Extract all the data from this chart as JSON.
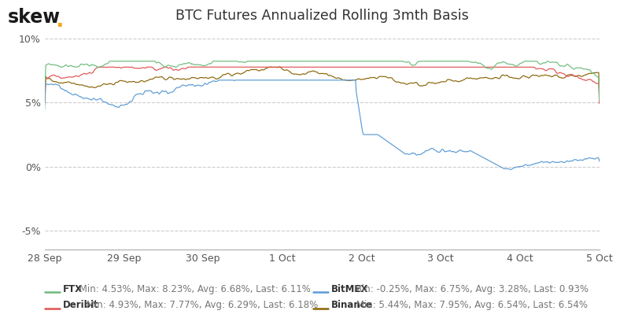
{
  "title": "BTC Futures Annualized Rolling 3mth Basis",
  "skew_dot_color": "#f5a623",
  "background_color": "#ffffff",
  "ylim": [
    -0.065,
    0.108
  ],
  "yticks": [
    -0.05,
    0.0,
    0.05,
    0.1
  ],
  "ytick_labels": [
    "-5%",
    "0%",
    "5%",
    "10%"
  ],
  "grid_color": "#cccccc",
  "grid_style": "--",
  "series": {
    "FTX": {
      "color": "#6dbb7a",
      "min": 0.0453,
      "max": 0.0823,
      "avg": 0.0668,
      "last": 0.0611
    },
    "BitMEX": {
      "color": "#5b9bd5",
      "min": -0.0025,
      "max": 0.0675,
      "avg": 0.0328,
      "last": 0.0093
    },
    "Deribit": {
      "color": "#e05252",
      "min": 0.0493,
      "max": 0.0777,
      "avg": 0.0629,
      "last": 0.0618
    },
    "Binance": {
      "color": "#8b6508",
      "min": 0.0544,
      "max": 0.0795,
      "avg": 0.0654,
      "last": 0.0654
    }
  },
  "legend": [
    {
      "name": "FTX",
      "stats": " Min: 4.53%, Max: 8.23%, Avg: 6.68%, Last: 6.11%"
    },
    {
      "name": "BitMEX",
      "stats": " Min: -0.25%, Max: 6.75%, Avg: 3.28%, Last: 0.93%"
    },
    {
      "name": "Deribit",
      "stats": " Min: 4.93%, Max: 7.77%, Avg: 6.29%, Last: 6.18%"
    },
    {
      "name": "Binance",
      "stats": " Min: 5.44%, Max: 7.95%, Avg: 6.54%, Last: 6.54%"
    }
  ],
  "xtick_labels": [
    "28 Sep",
    "29 Sep",
    "30 Sep",
    "1 Oct",
    "2 Oct",
    "3 Oct",
    "4 Oct",
    "5 Oct"
  ],
  "n_points": 900,
  "legend_fontsize": 8.5,
  "title_fontsize": 12.5,
  "text_color": "#555555"
}
